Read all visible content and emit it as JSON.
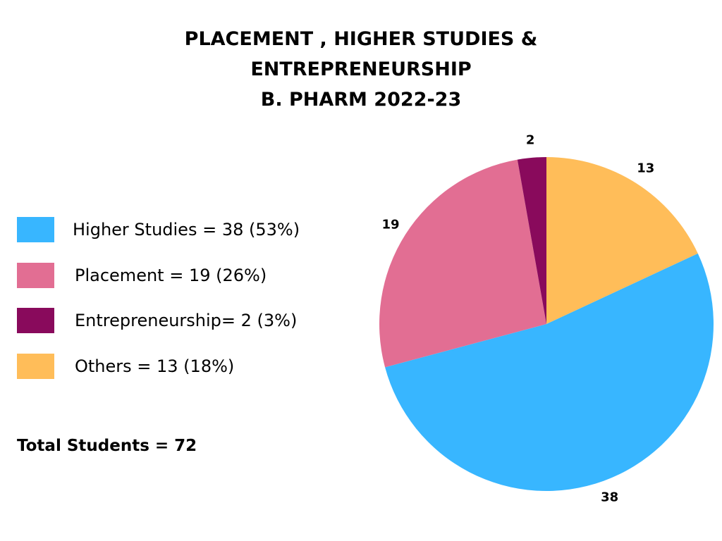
{
  "chart_data": {
    "type": "pie",
    "title_lines": [
      "PLACEMENT , HIGHER STUDIES &",
      "ENTREPRENEURSHIP",
      "B. PHARM 2022-23"
    ],
    "slices": [
      {
        "name": "Others",
        "value": 13,
        "color": "#FFBD59"
      },
      {
        "name": "Higher Studies",
        "value": 38,
        "color": "#38B6FF"
      },
      {
        "name": "Placement",
        "value": 19,
        "color": "#E26E93"
      },
      {
        "name": "Entrepreneurship",
        "value": 2,
        "color": "#890A5C"
      }
    ],
    "data_labels": [
      "13",
      "38",
      "19",
      "2"
    ],
    "legend": [
      {
        "label": "Higher Studies = 38 (53%)",
        "color": "#38B6FF"
      },
      {
        "label": "Placement = 19 (26%)",
        "color": "#E26E93"
      },
      {
        "label": "Entrepreneurship= 2 (3%)",
        "color": "#890A5C"
      },
      {
        "label": "Others = 13 (18%)",
        "color": "#FFBD59"
      }
    ],
    "legend_placement": "left",
    "total_label": "Total Students = 72"
  }
}
